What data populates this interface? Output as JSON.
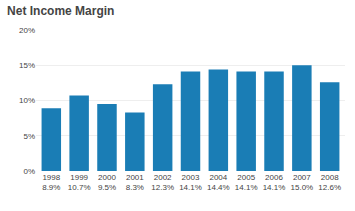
{
  "chart_data": {
    "type": "bar",
    "title": "Net Income Margin",
    "categories": [
      "1998",
      "1999",
      "2000",
      "2001",
      "2002",
      "2003",
      "2004",
      "2005",
      "2006",
      "2007",
      "2008"
    ],
    "values": [
      8.9,
      10.7,
      9.5,
      8.3,
      12.3,
      14.1,
      14.4,
      14.1,
      14.1,
      15.0,
      12.6
    ],
    "value_labels": [
      "8.9%",
      "10.7%",
      "9.5%",
      "8.3%",
      "12.3%",
      "14.1%",
      "14.4%",
      "14.1%",
      "14.1%",
      "15.0%",
      "12.6%"
    ],
    "data_labels": true,
    "color": "#1a7db5",
    "ylim": [
      0,
      20
    ],
    "yticks": [
      {
        "value": 0,
        "label": "0%"
      },
      {
        "value": 5,
        "label": "5%"
      },
      {
        "value": 10,
        "label": "10%"
      },
      {
        "value": 15,
        "label": "15%"
      },
      {
        "value": 20,
        "label": "20%"
      }
    ],
    "grid": true
  }
}
